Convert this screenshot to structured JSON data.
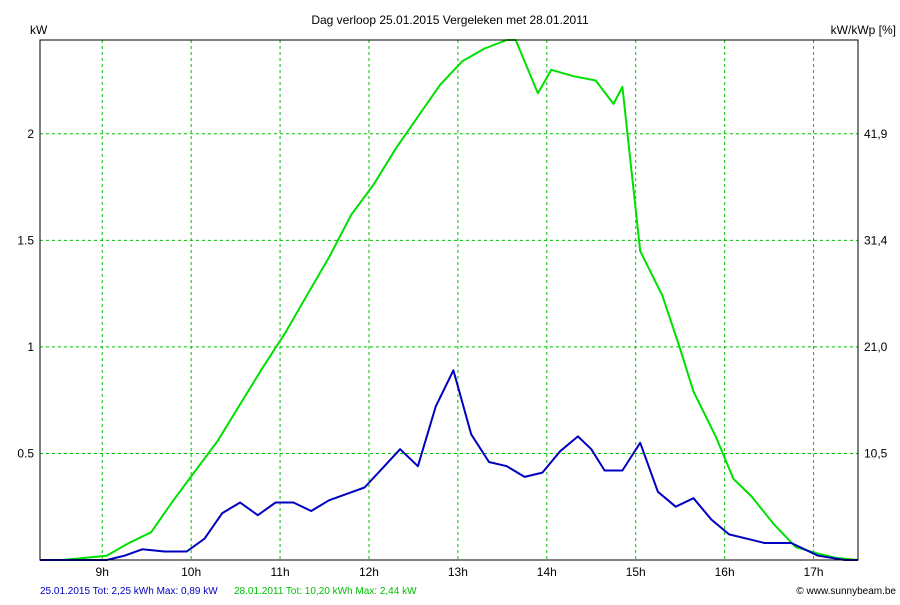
{
  "chart_data": {
    "type": "line",
    "title": "Dag  verloop 25.01.2015   Vergeleken met 28.01.2011",
    "y_left_unit": "kW",
    "y_right_unit": "kW/kWp [%]",
    "ylim": [
      0,
      2.44
    ],
    "xlim": [
      8.3,
      17.5
    ],
    "grid": true,
    "y_ticks": [
      {
        "value": 0.5,
        "left": "0.5",
        "right": "10,5"
      },
      {
        "value": 1.0,
        "left": "1",
        "right": "21,0"
      },
      {
        "value": 1.5,
        "left": "1.5",
        "right": "31,4"
      },
      {
        "value": 2.0,
        "left": "2",
        "right": "41,9"
      }
    ],
    "x_ticks": [
      {
        "value": 9,
        "label": "9h"
      },
      {
        "value": 10,
        "label": "10h"
      },
      {
        "value": 11,
        "label": "11h"
      },
      {
        "value": 12,
        "label": "12h"
      },
      {
        "value": 13,
        "label": "13h"
      },
      {
        "value": 14,
        "label": "14h"
      },
      {
        "value": 15,
        "label": "15h"
      },
      {
        "value": 16,
        "label": "16h"
      },
      {
        "value": 17,
        "label": "17h"
      }
    ],
    "series": [
      {
        "name": "28.01.2011",
        "color": "#00e000",
        "x": [
          8.3,
          8.55,
          8.8,
          9.05,
          9.3,
          9.55,
          9.8,
          10.05,
          10.3,
          10.55,
          10.8,
          11.05,
          11.3,
          11.55,
          11.8,
          12.05,
          12.3,
          12.55,
          12.8,
          13.05,
          13.3,
          13.55,
          13.65,
          13.9,
          14.05,
          14.3,
          14.55,
          14.75,
          14.85,
          15.05,
          15.3,
          15.5,
          15.65,
          15.9,
          16.1,
          16.3,
          16.55,
          16.8,
          17.05,
          17.25,
          17.5
        ],
        "values": [
          0,
          0,
          0.01,
          0.02,
          0.08,
          0.13,
          0.28,
          0.42,
          0.56,
          0.73,
          0.9,
          1.06,
          1.24,
          1.42,
          1.62,
          1.76,
          1.93,
          2.08,
          2.23,
          2.34,
          2.4,
          2.44,
          2.44,
          2.19,
          2.3,
          2.27,
          2.25,
          2.14,
          2.22,
          1.45,
          1.24,
          0.99,
          0.79,
          0.58,
          0.38,
          0.3,
          0.17,
          0.06,
          0.03,
          0.01,
          0
        ]
      },
      {
        "name": "25.01.2015",
        "color": "#0000c0",
        "x": [
          8.3,
          8.6,
          8.85,
          9.05,
          9.25,
          9.45,
          9.7,
          9.95,
          10.15,
          10.35,
          10.55,
          10.75,
          10.95,
          11.15,
          11.35,
          11.55,
          11.75,
          11.95,
          12.15,
          12.35,
          12.55,
          12.75,
          12.95,
          13.15,
          13.35,
          13.55,
          13.75,
          13.95,
          14.15,
          14.35,
          14.5,
          14.65,
          14.85,
          15.05,
          15.25,
          15.45,
          15.65,
          15.85,
          16.05,
          16.25,
          16.45,
          16.75,
          17.05,
          17.35,
          17.5
        ],
        "values": [
          0,
          0,
          0,
          0,
          0.02,
          0.05,
          0.04,
          0.04,
          0.1,
          0.22,
          0.27,
          0.21,
          0.27,
          0.27,
          0.23,
          0.28,
          0.31,
          0.34,
          0.43,
          0.52,
          0.44,
          0.72,
          0.89,
          0.59,
          0.46,
          0.44,
          0.39,
          0.41,
          0.51,
          0.58,
          0.52,
          0.42,
          0.42,
          0.55,
          0.32,
          0.25,
          0.29,
          0.19,
          0.12,
          0.1,
          0.08,
          0.08,
          0.02,
          0,
          0
        ]
      }
    ]
  },
  "footer": {
    "left_label": "25.01.2015 Tot: 2,25 kWh Max: 0,89 kW",
    "right_label": "28.01.2011 Tot: 10,20 kWh Max: 2,44 kW",
    "credit": "© www.sunnybeam.be"
  }
}
